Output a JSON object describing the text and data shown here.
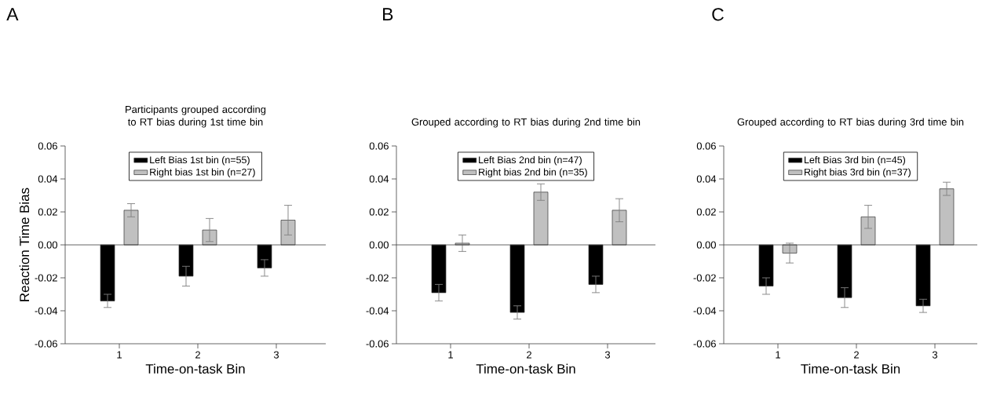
{
  "chart_data": [
    {
      "type": "bar",
      "title": "Participants grouped according to RT bias during 1st time bin",
      "xlabel": "Time-on-task Bin",
      "ylabel": "Reaction Time Bias",
      "annotations": [
        "A"
      ],
      "categories": [
        "1",
        "2",
        "3"
      ],
      "series": [
        {
          "name": "Left Bias 1st bin (n=55)",
          "color": "#000000",
          "values": [
            -0.034,
            -0.019,
            -0.014
          ],
          "errors": [
            0.004,
            0.006,
            0.005
          ]
        },
        {
          "name": "Right bias 1st bin (n=27)",
          "color": "#c0c0c0",
          "values": [
            0.021,
            0.009,
            0.015
          ],
          "errors": [
            0.004,
            0.007,
            0.009
          ]
        }
      ],
      "ylim": [
        -0.06,
        0.06
      ],
      "yticks": [
        {
          "value": -0.06,
          "label": "-0.06"
        },
        {
          "value": -0.04,
          "label": "-0.04"
        },
        {
          "value": -0.02,
          "label": "-0.02"
        },
        {
          "value": 0,
          "label": "0.00"
        },
        {
          "value": 0.02,
          "label": "0.02"
        },
        {
          "value": 0.04,
          "label": "0.04"
        },
        {
          "value": 0.06,
          "label": "0.06"
        }
      ],
      "legend": "top",
      "grid": false,
      "ref_lines": [
        {
          "axis": "y",
          "value": 0
        }
      ]
    },
    {
      "type": "bar",
      "title": "Grouped according to RT bias during 2nd time bin",
      "xlabel": "Time-on-task Bin",
      "annotations": [
        "B"
      ],
      "categories": [
        "1",
        "2",
        "3"
      ],
      "series": [
        {
          "name": "Left Bias 2nd bin (n=47)",
          "color": "#000000",
          "values": [
            -0.029,
            -0.041,
            -0.024
          ],
          "errors": [
            0.005,
            0.004,
            0.005
          ]
        },
        {
          "name": "Right bias 2nd bin (n=35)",
          "color": "#c0c0c0",
          "values": [
            0.001,
            0.032,
            0.021
          ],
          "errors": [
            0.005,
            0.005,
            0.007
          ]
        }
      ],
      "ylim": [
        -0.06,
        0.06
      ],
      "yticks": [
        {
          "value": -0.06,
          "label": "-0.06"
        },
        {
          "value": -0.04,
          "label": "-0.04"
        },
        {
          "value": -0.02,
          "label": "-0.02"
        },
        {
          "value": 0,
          "label": "0.00"
        },
        {
          "value": 0.02,
          "label": "0.02"
        },
        {
          "value": 0.04,
          "label": "0.04"
        },
        {
          "value": 0.06,
          "label": "0.06"
        }
      ],
      "legend": "top",
      "grid": false,
      "ref_lines": [
        {
          "axis": "y",
          "value": 0
        }
      ]
    },
    {
      "type": "bar",
      "title": "Grouped according to RT bias during 3rd time bin",
      "xlabel": "Time-on-task Bin",
      "annotations": [
        "C"
      ],
      "categories": [
        "1",
        "2",
        "3"
      ],
      "series": [
        {
          "name": "Left Bias 3rd bin (n=45)",
          "color": "#000000",
          "values": [
            -0.025,
            -0.032,
            -0.037
          ],
          "errors": [
            0.005,
            0.006,
            0.004
          ]
        },
        {
          "name": "Right bias 3rd bin (n=37)",
          "color": "#c0c0c0",
          "values": [
            -0.005,
            0.017,
            0.034
          ],
          "errors": [
            0.006,
            0.007,
            0.004
          ]
        }
      ],
      "ylim": [
        -0.06,
        0.06
      ],
      "yticks": [
        {
          "value": -0.06,
          "label": "-0.06"
        },
        {
          "value": -0.04,
          "label": "-0.04"
        },
        {
          "value": -0.02,
          "label": "-0.02"
        },
        {
          "value": 0,
          "label": "0.00"
        },
        {
          "value": 0.02,
          "label": "0.02"
        },
        {
          "value": 0.04,
          "label": "0.04"
        },
        {
          "value": 0.06,
          "label": "0.06"
        }
      ],
      "legend": "top",
      "grid": false,
      "ref_lines": [
        {
          "axis": "y",
          "value": 0
        }
      ]
    }
  ]
}
